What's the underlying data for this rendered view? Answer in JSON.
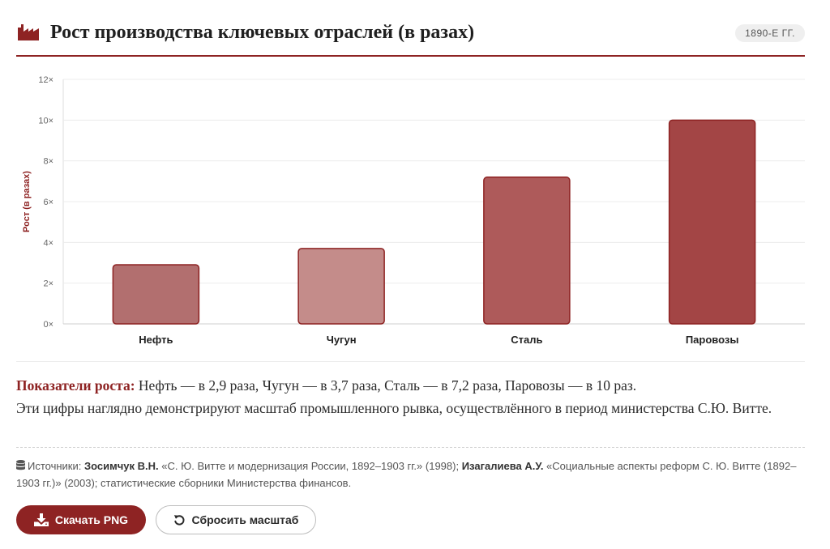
{
  "header": {
    "icon": "factory-icon",
    "title": "Рост производства ключевых отраслей (в разах)",
    "badge": "1890-Е ГГ."
  },
  "colors": {
    "accent": "#8e2323",
    "bars": [
      "#b26f6f",
      "#c48c8a",
      "#ae5a5a",
      "#a34545"
    ],
    "bar_stroke": "#8e2323"
  },
  "chart_data": {
    "type": "bar",
    "categories": [
      "Нефть",
      "Чугун",
      "Сталь",
      "Паровозы"
    ],
    "values": [
      2.9,
      3.7,
      7.2,
      10
    ],
    "ylabel": "Рост (в разах)",
    "xlabel": "",
    "ylim": [
      0,
      12
    ],
    "yticks": [
      0,
      2,
      4,
      6,
      8,
      10,
      12
    ],
    "ytick_suffix": "×",
    "grid": true,
    "legend": "none"
  },
  "summary": {
    "lead": "Показатели роста:",
    "line1": " Нефть — в 2,9 раза, Чугун — в 3,7 раза, Сталь — в 7,2 раза, Паровозы — в 10 раз.",
    "line2": "Эти цифры наглядно демонстрируют масштаб промышленного рывка, осуществлённого в период министерства С.Ю. Витте."
  },
  "sources": {
    "icon": "database-icon",
    "prefix": "Источники: ",
    "author1": "Зосимчук В.Н.",
    "work1": " «С. Ю. Витте и модернизация России, 1892–1903 гг.» (1998); ",
    "author2": "Изагалиева А.У.",
    "work2": " «Социальные аспекты реформ С. Ю. Витте (1892–1903 гг.)» (2003); статистические сборники Министерства финансов."
  },
  "buttons": {
    "download": {
      "label": "Скачать PNG",
      "icon": "download-icon"
    },
    "reset": {
      "label": "Сбросить масштаб",
      "icon": "undo-icon"
    }
  }
}
